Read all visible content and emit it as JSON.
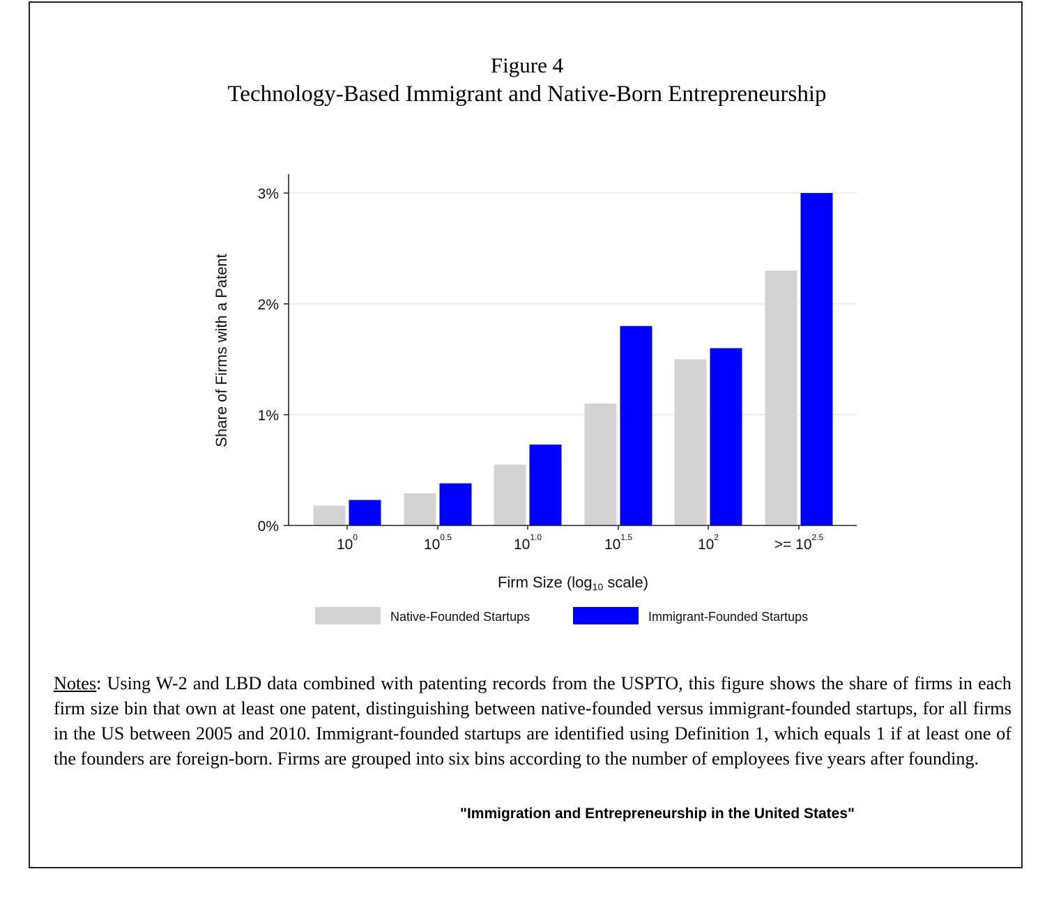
{
  "figure": {
    "label": "Figure 4",
    "title": "Technology-Based Immigrant and Native-Born Entrepreneurship"
  },
  "chart_data": {
    "type": "bar",
    "categories": [
      {
        "base": "10",
        "exp": "0"
      },
      {
        "base": "10",
        "exp": "0.5"
      },
      {
        "base": "10",
        "exp": "1.0"
      },
      {
        "base": "10",
        "exp": "1.5"
      },
      {
        "base": "10",
        "exp": "2"
      },
      {
        "base": ">= 10",
        "exp": "2.5"
      }
    ],
    "series": [
      {
        "name": "Native-Founded Startups",
        "color": "#d3d3d3",
        "values": [
          0.18,
          0.29,
          0.55,
          1.1,
          1.5,
          2.3
        ]
      },
      {
        "name": "Immigrant-Founded Startups",
        "color": "#0000ff",
        "values": [
          0.23,
          0.38,
          0.73,
          1.8,
          1.6,
          3.0
        ]
      }
    ],
    "ylim": [
      0,
      3
    ],
    "yticks": [
      0,
      1,
      2,
      3
    ],
    "ytick_labels": [
      "0%",
      "1%",
      "2%",
      "3%"
    ],
    "ylabel": "Share of Firms with a Patent",
    "xlabel": {
      "pre": "Firm Size (log",
      "sub": "10",
      "post": " scale)"
    },
    "grid": true,
    "legend_position": "bottom"
  },
  "notes": {
    "label": "Notes",
    "text": ": Using W-2 and LBD data combined with patenting records from the USPTO, this figure shows the share of firms in each firm size bin that own at least one patent, distinguishing between native-founded versus immigrant-founded startups, for all firms in the US between 2005 and 2010. Immigrant-founded startups are identified using Definition 1, which equals 1 if at least one of the founders are foreign-born. Firms are grouped into six bins according to the number of employees five years after founding."
  },
  "citation": "\"Immigration and Entrepreneurship in the United States\""
}
